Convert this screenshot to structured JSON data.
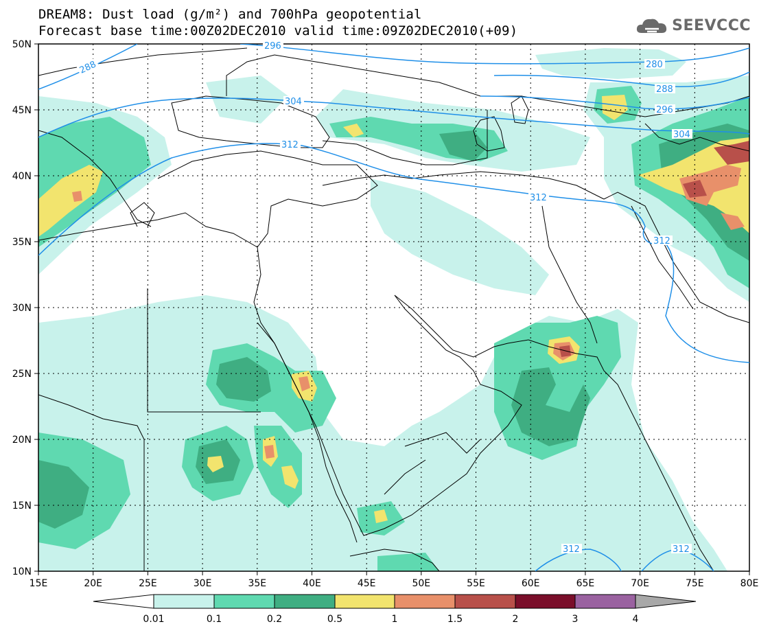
{
  "header": {
    "title_line1": "DREAM8: Dust load (g/m²) and 700hPa geopotential",
    "title_line2": "Forecast base time:00Z02DEC2010 valid time:09Z02DEC2010(+09)",
    "logo": "SEEVCCC"
  },
  "map": {
    "lon_labels": [
      "15E",
      "20E",
      "25E",
      "30E",
      "35E",
      "40E",
      "45E",
      "50E",
      "55E",
      "60E",
      "65E",
      "70E",
      "75E",
      "80E"
    ],
    "lat_labels": [
      "50N",
      "45N",
      "40N",
      "35N",
      "30N",
      "25N",
      "20N",
      "15N",
      "10N"
    ],
    "contour_labels": [
      "296",
      "288",
      "304",
      "312",
      "280",
      "288",
      "296",
      "304",
      "312",
      "312",
      "312",
      "312"
    ]
  },
  "colorbar": {
    "labels": [
      "0.01",
      "0.1",
      "0.2",
      "0.5",
      "1",
      "1.5",
      "2",
      "3",
      "4"
    ],
    "colors": [
      "#ffffff",
      "#c8f2eb",
      "#5fd9b0",
      "#3fae82",
      "#f2e46e",
      "#e8906a",
      "#b8504a",
      "#7a0e2a",
      "#9a62a0",
      "#a8a8a8"
    ]
  }
}
